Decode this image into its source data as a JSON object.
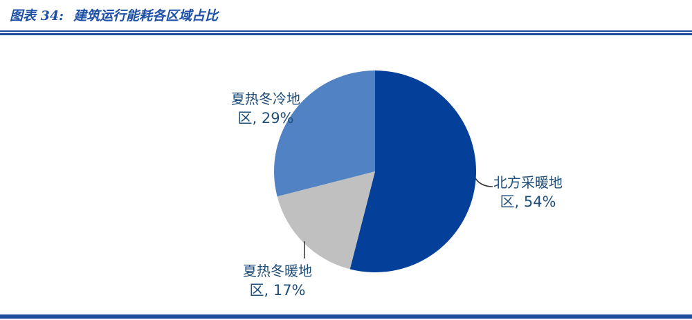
{
  "header": {
    "figure_label": "图表 34:",
    "figure_title": "建筑运行能耗各区域占比"
  },
  "chart_data": {
    "type": "pie",
    "title": "建筑运行能耗各区域占比",
    "start_angle_deg": 0,
    "direction": "clockwise",
    "legend": "none",
    "label_style": "category name + percent, outside-end",
    "slices": [
      {
        "name": "北方采暖地区",
        "value_pct": 54,
        "color": "#04409a",
        "label_line1": "北方采暖地",
        "label_line2": "区, 54%"
      },
      {
        "name": "夏热冬暖地区",
        "value_pct": 17,
        "color": "#c0c0c0",
        "label_line1": "夏热冬暖地",
        "label_line2": "区, 17%"
      },
      {
        "name": "夏热冬冷地区",
        "value_pct": 29,
        "color": "#5183c4",
        "label_line1": "夏热冬冷地",
        "label_line2": "区, 29%"
      }
    ]
  },
  "colors": {
    "accent_rule": "#1e4b9a",
    "title_text": "#1d4fa6",
    "label_text": "#1f4e79",
    "leader_line": "#3a3a3a"
  }
}
